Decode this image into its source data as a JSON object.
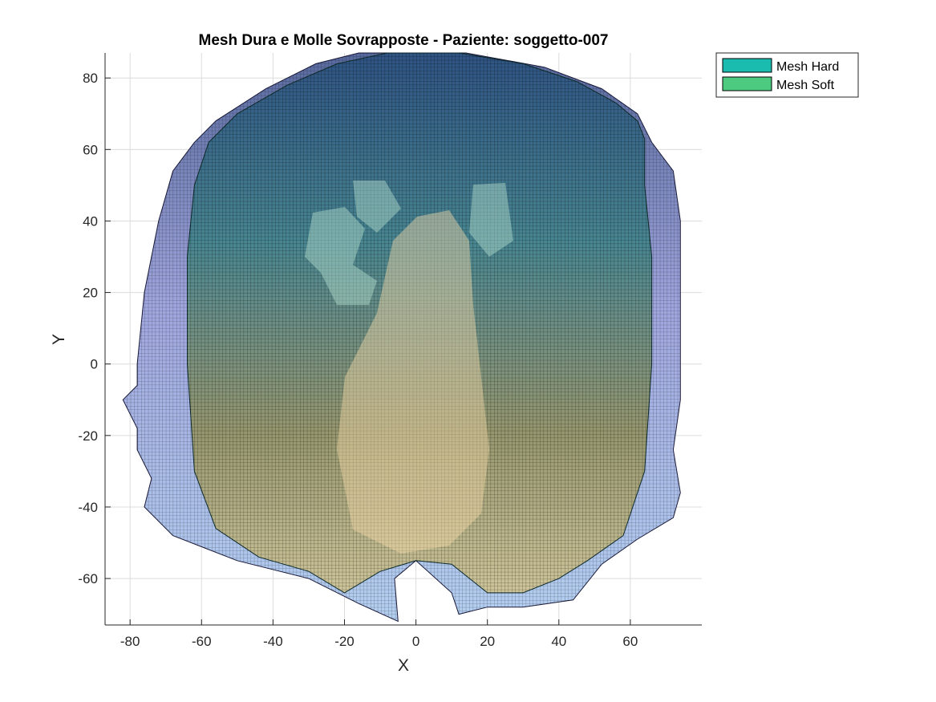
{
  "chart_data": {
    "type": "scatter",
    "title": "Mesh Dura e Molle Sovrapposte - Paziente: soggetto-007",
    "xlabel": "X",
    "ylabel": "Y",
    "xlim": [
      -87,
      80
    ],
    "ylim": [
      -73,
      87
    ],
    "xticks": [
      -80,
      -60,
      -40,
      -20,
      0,
      20,
      40,
      60
    ],
    "yticks": [
      -60,
      -40,
      -20,
      0,
      20,
      40,
      60,
      80
    ],
    "grid": true,
    "legend_position": "outside-top-right",
    "series": [
      {
        "name": "Mesh Hard",
        "color": "#1bbcb0",
        "outline": [
          [
            -8,
            87
          ],
          [
            12,
            87
          ],
          [
            30,
            84
          ],
          [
            45,
            79
          ],
          [
            56,
            73
          ],
          [
            62,
            68
          ],
          [
            64,
            63
          ],
          [
            64,
            50
          ],
          [
            66,
            30
          ],
          [
            66,
            0
          ],
          [
            64,
            -30
          ],
          [
            58,
            -48
          ],
          [
            48,
            -55
          ],
          [
            40,
            -60
          ],
          [
            30,
            -64
          ],
          [
            20,
            -64
          ],
          [
            10,
            -56
          ],
          [
            0,
            -55
          ],
          [
            -10,
            -58
          ],
          [
            -20,
            -64
          ],
          [
            -30,
            -58
          ],
          [
            -44,
            -54
          ],
          [
            -56,
            -46
          ],
          [
            -62,
            -30
          ],
          [
            -64,
            0
          ],
          [
            -64,
            30
          ],
          [
            -62,
            50
          ],
          [
            -58,
            62
          ],
          [
            -50,
            70
          ],
          [
            -36,
            78
          ],
          [
            -22,
            84
          ]
        ]
      },
      {
        "name": "Mesh Soft",
        "color": "#4ccb80",
        "outline": [
          [
            -16,
            87
          ],
          [
            14,
            87
          ],
          [
            36,
            83
          ],
          [
            52,
            77
          ],
          [
            62,
            70
          ],
          [
            66,
            62
          ],
          [
            72,
            54
          ],
          [
            74,
            40
          ],
          [
            74,
            20
          ],
          [
            74,
            -10
          ],
          [
            72,
            -24
          ],
          [
            74,
            -36
          ],
          [
            72,
            -43
          ],
          [
            62,
            -49
          ],
          [
            52,
            -56
          ],
          [
            44,
            -66
          ],
          [
            30,
            -68
          ],
          [
            20,
            -68
          ],
          [
            12,
            -70
          ],
          [
            10,
            -64
          ],
          [
            0,
            -55
          ],
          [
            -6,
            -60
          ],
          [
            -5,
            -72
          ],
          [
            -16,
            -67
          ],
          [
            -30,
            -60
          ],
          [
            -50,
            -55
          ],
          [
            -68,
            -48
          ],
          [
            -76,
            -40
          ],
          [
            -74,
            -32
          ],
          [
            -78,
            -24
          ],
          [
            -78,
            -18
          ],
          [
            -82,
            -10
          ],
          [
            -78,
            -6
          ],
          [
            -78,
            0
          ],
          [
            -76,
            20
          ],
          [
            -72,
            40
          ],
          [
            -68,
            54
          ],
          [
            -62,
            62
          ],
          [
            -56,
            68
          ],
          [
            -42,
            77
          ],
          [
            -28,
            84
          ]
        ]
      }
    ]
  }
}
